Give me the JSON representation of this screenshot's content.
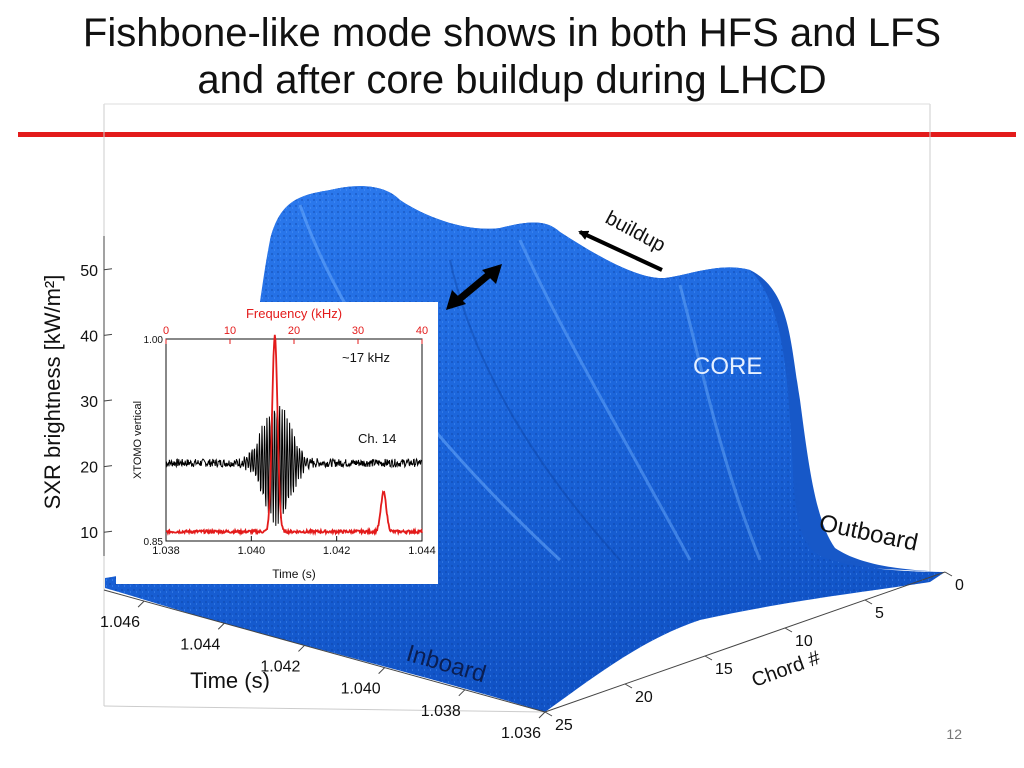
{
  "slide": {
    "title_line1": "Fishbone-like mode shows in both HFS and LFS",
    "title_line2": "and after core buildup during LHCD",
    "page_number": "12",
    "accent_color": "#e31b1b"
  },
  "chart_data": [
    {
      "type": "surface",
      "zlabel": "SXR brightness [kW/m²]",
      "xlabel": "Time (s)",
      "ylabel": "Chord #",
      "z_ticks": [
        "10",
        "20",
        "30",
        "40",
        "50"
      ],
      "x_ticks": [
        "1.046",
        "1.044",
        "1.042",
        "1.040",
        "1.038",
        "1.036"
      ],
      "y_ticks": [
        "0",
        "5",
        "10",
        "15",
        "20",
        "25"
      ],
      "zlim": [
        5,
        55
      ],
      "xlim": [
        1.036,
        1.047
      ],
      "ylim": [
        0,
        25
      ],
      "annotations": {
        "core": "CORE",
        "buildup": "buildup",
        "outboard": "Outboard",
        "inboard": "Inboard"
      },
      "surface_color": "#1f6fe0"
    },
    {
      "type": "line",
      "ylabel": "XTOMO vertical",
      "xlabel": "Time (s)",
      "x2label": "Frequency (kHz)",
      "x_ticks": [
        "1.038",
        "1.040",
        "1.042",
        "1.044"
      ],
      "x2_ticks": [
        "0",
        "10",
        "20",
        "30",
        "40"
      ],
      "y_ticks": [
        "1.00",
        "0.85"
      ],
      "xlim": [
        1.038,
        1.044
      ],
      "x2lim": [
        0,
        40
      ],
      "ylim": [
        0.85,
        1.0
      ],
      "labels": {
        "freq": "~17 kHz",
        "channel": "Ch. 14"
      },
      "series": [
        {
          "color": "#000000",
          "signal": {
            "baseline": 0.908,
            "peak_time": 1.0406,
            "peak_amplitude": 0.045,
            "osc_freq_khz": 17
          }
        },
        {
          "color": "#e31b1b",
          "peaks": [
            {
              "freq_khz": 17,
              "height": 1.0
            },
            {
              "freq_khz": 34,
              "height": 0.2
            }
          ]
        }
      ]
    }
  ]
}
